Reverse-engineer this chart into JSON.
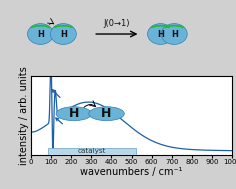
{
  "xlabel": "wavenumbers / cm⁻¹",
  "ylabel": "intensity / arb. units",
  "xlim": [
    0,
    1000
  ],
  "line_color": "#1b5faa",
  "background_color": "#d0d0d0",
  "plot_bg_color": "#ffffff",
  "catalyst_box_color": "#b8d8ea",
  "catalyst_border_color": "#7aaec8",
  "catalyst_text": "catalyst",
  "H_ball_color": "#6ab3d8",
  "H_ball_edge_color": "#3380aa",
  "green_arc_color": "#22bb22",
  "J_label": "J(0→1)",
  "font_size_axis": 7,
  "xticks": [
    0,
    100,
    200,
    300,
    400,
    500,
    600,
    700,
    800,
    900,
    1000
  ]
}
